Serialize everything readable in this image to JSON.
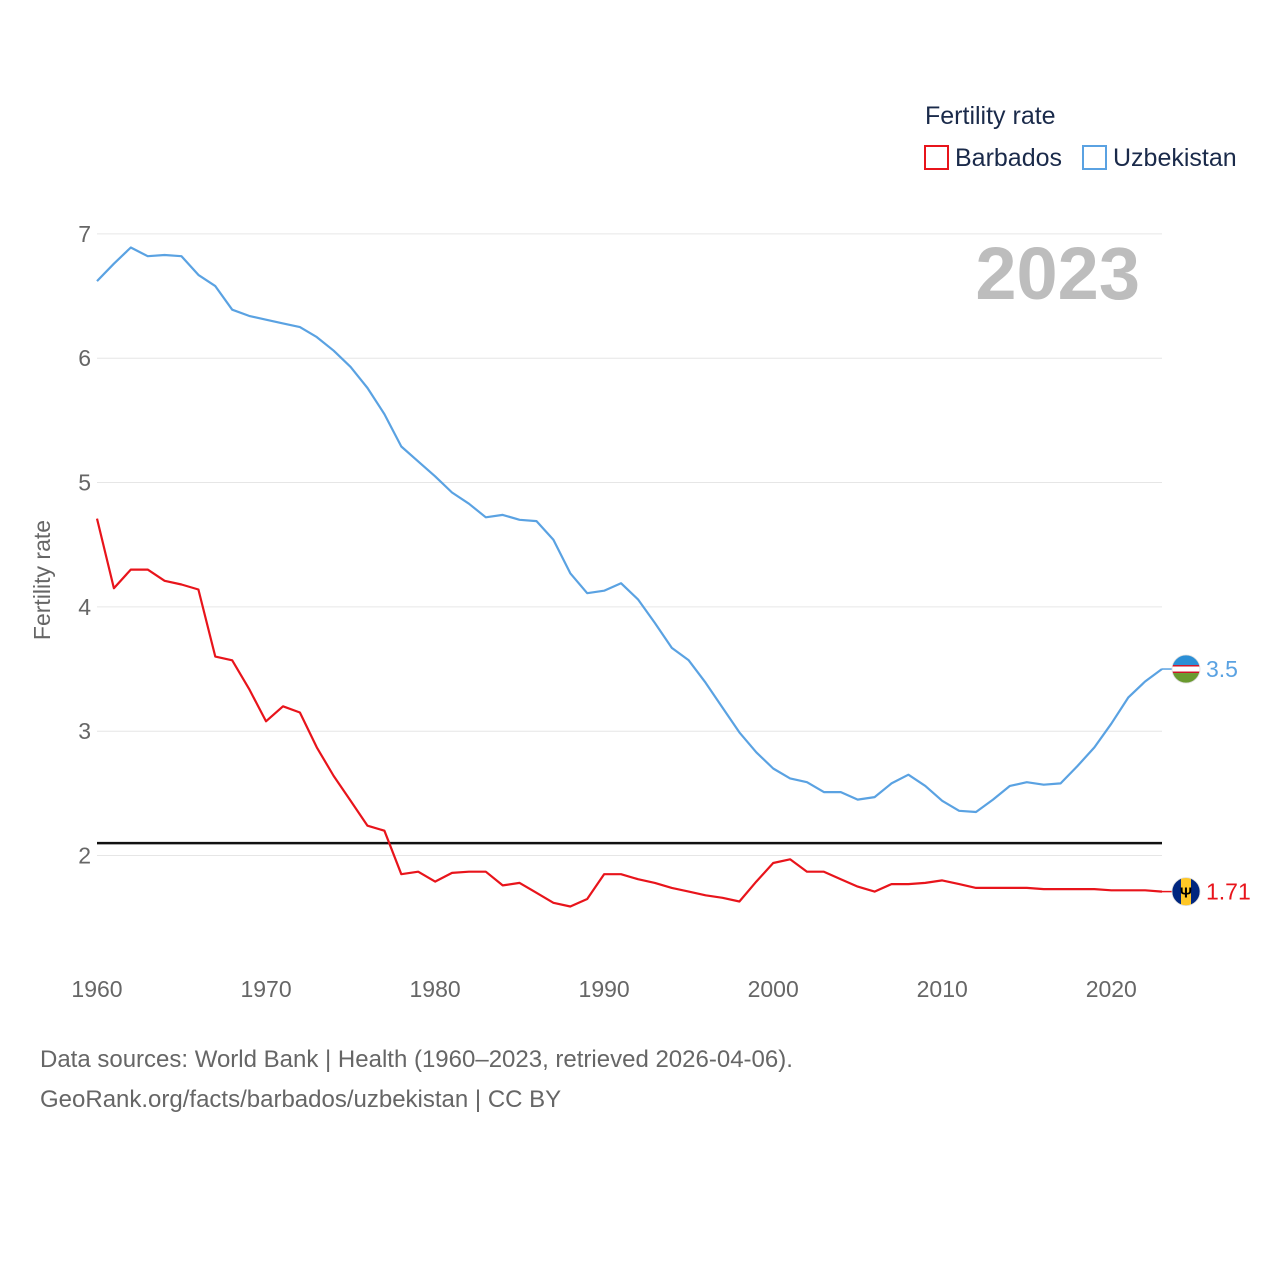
{
  "chart_data": {
    "type": "line",
    "title": "Fertility rate",
    "ylabel": "Fertility rate",
    "xlabel": "",
    "year_label": "2023",
    "xlim": [
      1960,
      2023
    ],
    "ylim": [
      1.2,
      7.2
    ],
    "x_ticks": [
      "1960",
      "1970",
      "1980",
      "1990",
      "2000",
      "2010",
      "2020"
    ],
    "y_ticks": [
      "2",
      "3",
      "4",
      "5",
      "6",
      "7"
    ],
    "reference_line": 2.1,
    "grid": true,
    "legend_position": "top-right",
    "x": [
      1960,
      1961,
      1962,
      1963,
      1964,
      1965,
      1966,
      1967,
      1968,
      1969,
      1970,
      1971,
      1972,
      1973,
      1974,
      1975,
      1976,
      1977,
      1978,
      1979,
      1980,
      1981,
      1982,
      1983,
      1984,
      1985,
      1986,
      1987,
      1988,
      1989,
      1990,
      1991,
      1992,
      1993,
      1994,
      1995,
      1996,
      1997,
      1998,
      1999,
      2000,
      2001,
      2002,
      2003,
      2004,
      2005,
      2006,
      2007,
      2008,
      2009,
      2010,
      2011,
      2012,
      2013,
      2014,
      2015,
      2016,
      2017,
      2018,
      2019,
      2020,
      2021,
      2022,
      2023
    ],
    "series": [
      {
        "name": "Barbados",
        "color": "#e8141b",
        "end_label": "1.71",
        "flag": "barbados-flag-icon",
        "values": [
          4.71,
          4.15,
          4.3,
          4.3,
          4.21,
          4.18,
          4.14,
          3.6,
          3.57,
          3.34,
          3.08,
          3.2,
          3.15,
          2.87,
          2.64,
          2.44,
          2.24,
          2.2,
          1.85,
          1.87,
          1.79,
          1.86,
          1.87,
          1.87,
          1.76,
          1.78,
          1.7,
          1.62,
          1.59,
          1.65,
          1.85,
          1.85,
          1.81,
          1.78,
          1.74,
          1.71,
          1.68,
          1.66,
          1.63,
          1.79,
          1.94,
          1.97,
          1.87,
          1.87,
          1.81,
          1.75,
          1.71,
          1.77,
          1.77,
          1.78,
          1.8,
          1.77,
          1.74,
          1.74,
          1.74,
          1.74,
          1.73,
          1.73,
          1.73,
          1.73,
          1.72,
          1.72,
          1.72,
          1.71
        ]
      },
      {
        "name": "Uzbekistan",
        "color": "#5aa2e2",
        "end_label": "3.5",
        "flag": "uzbekistan-flag-icon",
        "values": [
          6.62,
          6.76,
          6.89,
          6.82,
          6.83,
          6.82,
          6.67,
          6.58,
          6.39,
          6.34,
          6.31,
          6.28,
          6.25,
          6.17,
          6.06,
          5.93,
          5.76,
          5.55,
          5.29,
          5.17,
          5.05,
          4.92,
          4.83,
          4.72,
          4.74,
          4.7,
          4.69,
          4.54,
          4.27,
          4.11,
          4.13,
          4.19,
          4.06,
          3.87,
          3.67,
          3.57,
          3.39,
          3.19,
          2.99,
          2.83,
          2.7,
          2.62,
          2.59,
          2.51,
          2.51,
          2.45,
          2.47,
          2.58,
          2.65,
          2.56,
          2.44,
          2.36,
          2.35,
          2.45,
          2.56,
          2.59,
          2.57,
          2.58,
          2.72,
          2.87,
          3.06,
          3.27,
          3.4,
          3.5
        ]
      }
    ]
  },
  "footer": {
    "line1": "Data sources: World Bank | Health (1960–2023, retrieved 2026-04-06).",
    "line2": "GeoRank.org/facts/barbados/uzbekistan | CC BY"
  }
}
